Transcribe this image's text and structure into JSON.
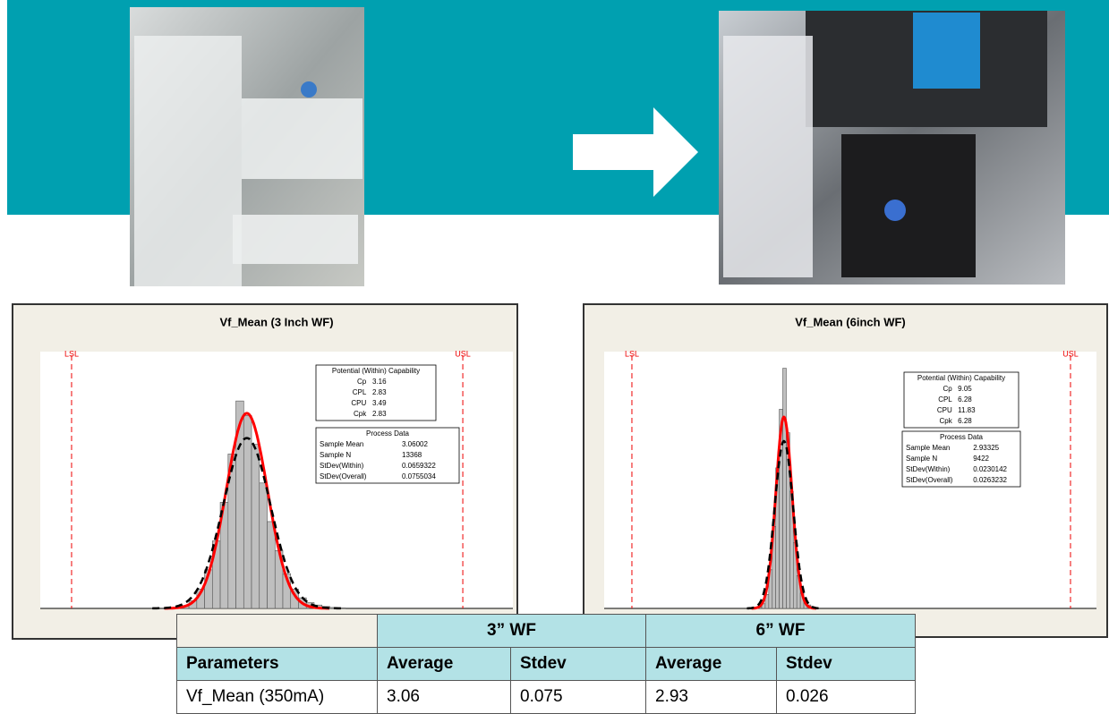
{
  "chart_data": [
    {
      "type": "histogram",
      "title": "Vf_Mean (3 Inch WF)",
      "bins": [
        2.85,
        2.875,
        2.9,
        2.925,
        2.95,
        2.975,
        3.0,
        3.025,
        3.05,
        3.075,
        3.1,
        3.125,
        3.15,
        3.175,
        3.2,
        3.225,
        3.25,
        3.275,
        3.3,
        3.325,
        3.35,
        3.375
      ],
      "values": [
        30,
        80,
        200,
        400,
        700,
        1100,
        1600,
        2150,
        2000,
        1700,
        1300,
        900,
        600,
        360,
        200,
        110,
        60,
        35,
        20,
        10,
        5
      ],
      "color": "#bfbfbf",
      "within_color": "#ff0000",
      "overall_color": "#000000",
      "xlim": [
        2.4,
        3.91
      ],
      "ylim": [
        0,
        2550
      ],
      "spec_limits": [
        {
          "value": 2.5,
          "label": "LSL"
        },
        {
          "value": 3.75,
          "label": "USL"
        }
      ],
      "capability": {
        "title": "Potential (Within) Capability",
        "rows": [
          [
            "Cp",
            3.16
          ],
          [
            "CPL",
            2.83
          ],
          [
            "CPU",
            3.49
          ],
          [
            "Cpk",
            2.83
          ]
        ]
      },
      "process_data": {
        "title": "Process Data",
        "rows": [
          [
            "Sample Mean",
            3.06002
          ],
          [
            "Sample N",
            13368
          ],
          [
            "StDev(Within)",
            0.0659322
          ],
          [
            "StDev(Overall)",
            0.0755034
          ]
        ]
      }
    },
    {
      "type": "histogram",
      "title": "Vf_Mean (6inch WF)",
      "bins": [
        2.86,
        2.87,
        2.88,
        2.89,
        2.9,
        2.91,
        2.92,
        2.93,
        2.94,
        2.95,
        2.96,
        2.97,
        2.98,
        2.99,
        3.0,
        3.01,
        3.02
      ],
      "values": [
        10,
        40,
        120,
        330,
        700,
        1200,
        1700,
        2050,
        1500,
        1000,
        560,
        280,
        130,
        60,
        30,
        15
      ],
      "color": "#bfbfbf",
      "within_color": "#ff0000",
      "overall_color": "#000000",
      "xlim": [
        2.421,
        3.824
      ],
      "ylim": [
        0,
        2100
      ],
      "spec_limits": [
        {
          "value": 2.5,
          "label": "LSL"
        },
        {
          "value": 3.75,
          "label": "USL"
        }
      ],
      "capability": {
        "title": "Potential (Within) Capability",
        "rows": [
          [
            "Cp",
            9.05
          ],
          [
            "CPL",
            6.28
          ],
          [
            "CPU",
            11.83
          ],
          [
            "Cpk",
            6.28
          ]
        ]
      },
      "process_data": {
        "title": "Process Data",
        "rows": [
          [
            "Sample Mean",
            2.93325
          ],
          [
            "Sample N",
            9422
          ],
          [
            "StDev(Within)",
            0.0230142
          ],
          [
            "StDev(Overall)",
            0.0263232
          ]
        ]
      }
    }
  ],
  "table": {
    "groups": [
      "3” WF",
      "6” WF"
    ],
    "header": [
      "Parameters",
      "Average",
      "Stdev",
      "Average",
      "Stdev"
    ],
    "rows": [
      [
        "Vf_Mean (350mA)",
        3.06,
        0.075,
        2.93,
        0.026
      ]
    ]
  }
}
